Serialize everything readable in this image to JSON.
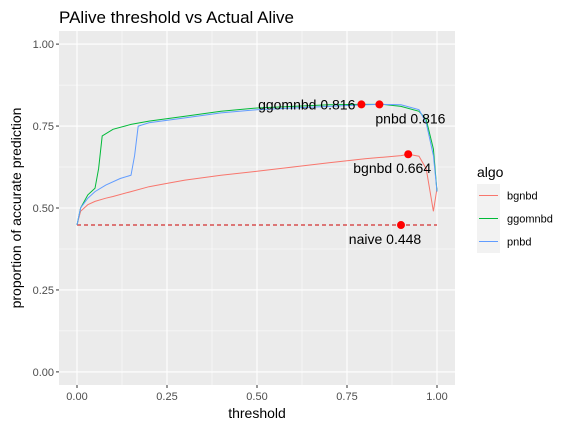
{
  "chart_data": {
    "type": "line",
    "title": "PAlive threshold vs Actual Alive",
    "xlabel": "threshold",
    "ylabel": "proportion of accurate prediction",
    "xlim": [
      -0.05,
      1.05
    ],
    "ylim": [
      -0.04,
      1.04
    ],
    "xticks": [
      0,
      0.25,
      0.5,
      0.75,
      1
    ],
    "xtick_labels": [
      "0.00",
      "0.25",
      "0.50",
      "0.75",
      "1.00"
    ],
    "yticks": [
      0,
      0.25,
      0.5,
      0.75,
      1
    ],
    "ytick_labels": [
      "0.00",
      "0.25",
      "0.50",
      "0.75",
      "1.00"
    ],
    "grid": true,
    "legend": {
      "title": "algo",
      "position": "right"
    },
    "series": [
      {
        "name": "bgnbd",
        "color": "#F8766D",
        "x": [
          0,
          0.01,
          0.03,
          0.05,
          0.08,
          0.1,
          0.15,
          0.2,
          0.25,
          0.3,
          0.4,
          0.5,
          0.6,
          0.7,
          0.8,
          0.85,
          0.9,
          0.92,
          0.95,
          0.97,
          0.99,
          1.0
        ],
        "y": [
          0.448,
          0.49,
          0.51,
          0.52,
          0.53,
          0.535,
          0.55,
          0.565,
          0.575,
          0.585,
          0.6,
          0.612,
          0.625,
          0.638,
          0.65,
          0.655,
          0.66,
          0.664,
          0.658,
          0.62,
          0.49,
          0.56
        ]
      },
      {
        "name": "ggomnbd",
        "color": "#00BA38",
        "x": [
          0,
          0.01,
          0.03,
          0.05,
          0.06,
          0.07,
          0.1,
          0.15,
          0.2,
          0.3,
          0.4,
          0.5,
          0.6,
          0.7,
          0.79,
          0.85,
          0.9,
          0.95,
          0.97,
          0.99,
          1.0
        ],
        "y": [
          0.448,
          0.5,
          0.54,
          0.56,
          0.62,
          0.72,
          0.74,
          0.755,
          0.765,
          0.78,
          0.795,
          0.805,
          0.81,
          0.815,
          0.816,
          0.816,
          0.81,
          0.795,
          0.77,
          0.68,
          0.55
        ]
      },
      {
        "name": "pnbd",
        "color": "#619CFF",
        "x": [
          0,
          0.01,
          0.03,
          0.05,
          0.08,
          0.12,
          0.15,
          0.16,
          0.17,
          0.2,
          0.3,
          0.4,
          0.5,
          0.6,
          0.7,
          0.8,
          0.84,
          0.9,
          0.95,
          0.97,
          0.99,
          1.0
        ],
        "y": [
          0.448,
          0.5,
          0.53,
          0.55,
          0.57,
          0.59,
          0.6,
          0.66,
          0.75,
          0.76,
          0.775,
          0.79,
          0.8,
          0.805,
          0.81,
          0.815,
          0.816,
          0.815,
          0.8,
          0.76,
          0.66,
          0.55
        ]
      }
    ],
    "reference_line": {
      "name": "naive",
      "y": 0.448,
      "x": [
        0,
        1
      ],
      "color": "#CC0000",
      "style": "dashed"
    },
    "highlight_points": [
      {
        "label": "ggomnbd 0.816",
        "x": 0.79,
        "y": 0.816,
        "anchor": "end"
      },
      {
        "label": "pnbd 0.816",
        "x": 0.84,
        "y": 0.816,
        "anchor": "below-right"
      },
      {
        "label": "bgnbd 0.664",
        "x": 0.92,
        "y": 0.664,
        "anchor": "below"
      },
      {
        "label": "naive 0.448",
        "x": 0.9,
        "y": 0.448,
        "anchor": "below"
      }
    ],
    "highlight_color": "#FF0000"
  }
}
